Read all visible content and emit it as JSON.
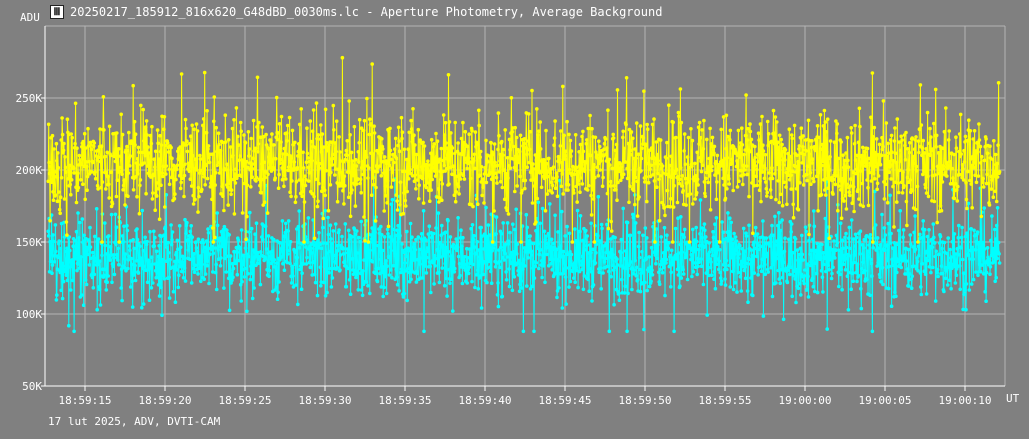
{
  "window": {
    "title": "20250217_185912_816x620_G48dBD_0030ms.lc - Aperture Photometry, Average Background",
    "icon": "lightcurve-app-icon"
  },
  "footer": {
    "text": "17 lut 2025, ADV, DVTI-CAM"
  },
  "colors": {
    "background": "#808080",
    "grid": "#b4b4b4",
    "axis": "#ffffff",
    "series1": "#ffff00",
    "series2": "#00ffff"
  },
  "chart_data": {
    "type": "line",
    "ylabel": "ADU",
    "xunit": "UT",
    "ylim": [
      50000,
      300000
    ],
    "xlim": [
      "18:59:12.5",
      "19:00:12.5"
    ],
    "yticks": [
      {
        "value": 50000,
        "label": "50K"
      },
      {
        "value": 100000,
        "label": "100K"
      },
      {
        "value": 150000,
        "label": "150K"
      },
      {
        "value": 200000,
        "label": "200K"
      },
      {
        "value": 250000,
        "label": "250K"
      }
    ],
    "xticks": [
      "18:59:15",
      "18:59:20",
      "18:59:25",
      "18:59:30",
      "18:59:35",
      "18:59:40",
      "18:59:45",
      "18:59:50",
      "18:59:55",
      "19:00:00",
      "19:00:05",
      "19:00:10"
    ],
    "grid": true,
    "point_interval_s": 0.03,
    "series": [
      {
        "color": "#ffff00",
        "mean": 205000,
        "spread": 30000,
        "min": 150000,
        "max": 278000
      },
      {
        "color": "#00ffff",
        "mean": 140000,
        "spread": 25000,
        "min": 88000,
        "max": 195000
      }
    ]
  }
}
